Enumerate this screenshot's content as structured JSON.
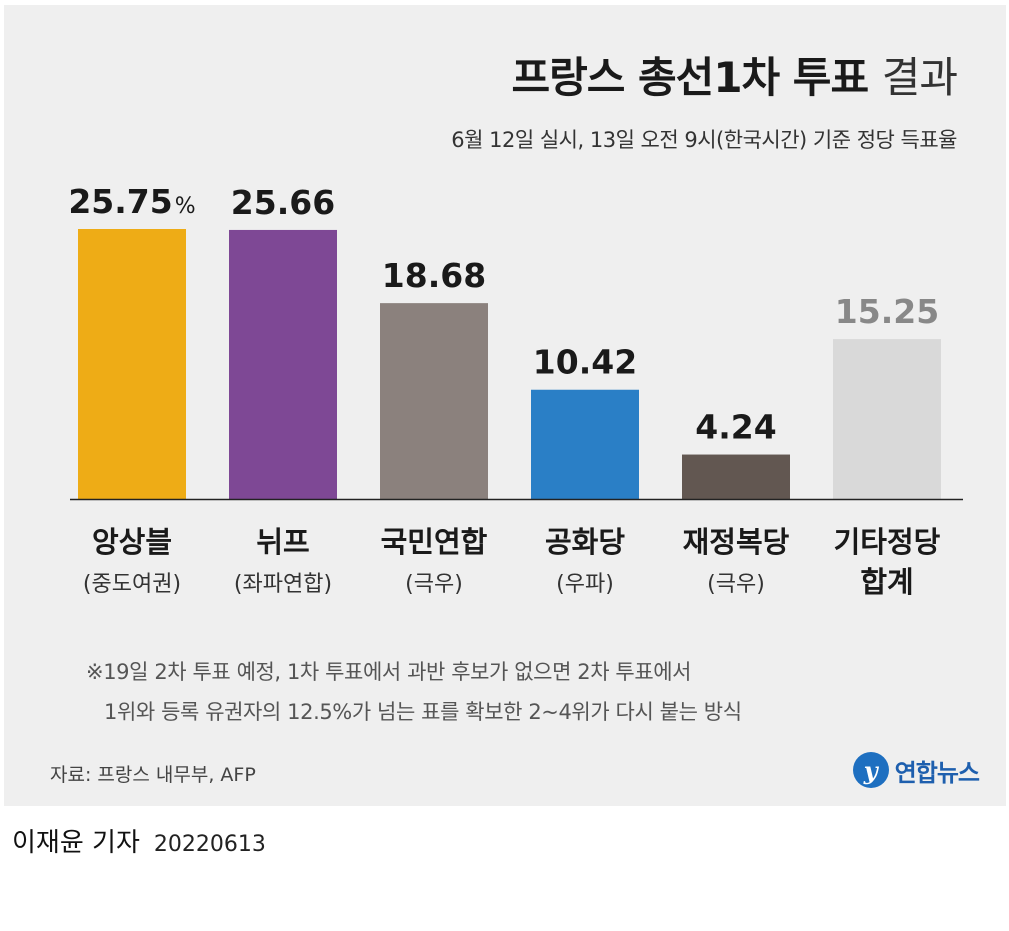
{
  "header": {
    "title_bold": "프랑스 총선1차 투표",
    "title_light": "결과",
    "subtitle": "6월 12일 실시, 13일 오전 9시(한국시간) 기준 정당 득표율"
  },
  "chart_data": {
    "type": "bar",
    "title": "프랑스 총선1차 투표 결과",
    "subtitle": "6월 12일 실시, 13일 오전 9시(한국시간) 기준 정당 득표율",
    "unit": "%",
    "ylim": [
      0,
      30
    ],
    "grid": false,
    "categories": [
      {
        "name": "앙상블",
        "sub": "(중도여권)",
        "value": 25.75,
        "label": "25.75",
        "color": "#eeac16",
        "label_color": "#1a1a1a"
      },
      {
        "name": "뉘프",
        "sub": "(좌파연합)",
        "value": 25.66,
        "label": "25.66",
        "color": "#7e4895",
        "label_color": "#1a1a1a"
      },
      {
        "name": "국민연합",
        "sub": "(극우)",
        "value": 18.68,
        "label": "18.68",
        "color": "#8b817d",
        "label_color": "#1a1a1a"
      },
      {
        "name": "공화당",
        "sub": "(우파)",
        "value": 10.42,
        "label": "10.42",
        "color": "#2a7fc6",
        "label_color": "#1a1a1a"
      },
      {
        "name": "재정복당",
        "sub": "(극우)",
        "value": 4.24,
        "label": "4.24",
        "color": "#625751",
        "label_color": "#1a1a1a"
      },
      {
        "name": "기타정당",
        "sub": "합계",
        "value": 15.25,
        "label": "15.25",
        "color": "#d9d9d9",
        "label_color": "#888888"
      }
    ]
  },
  "note": {
    "line1": "※19일 2차 투표 예정,  1차 투표에서 과반 후보가 없으면  2차 투표에서",
    "line2": "1위와 등록 유권자의 12.5%가 넘는 표를 확보한 2~4위가 다시 붙는 방식"
  },
  "source": "자료: 프랑스 내무부, AFP",
  "logo": {
    "mark": "y",
    "text": "연합뉴스"
  },
  "credit": {
    "author": "이재윤 기자",
    "date": "20220613"
  }
}
